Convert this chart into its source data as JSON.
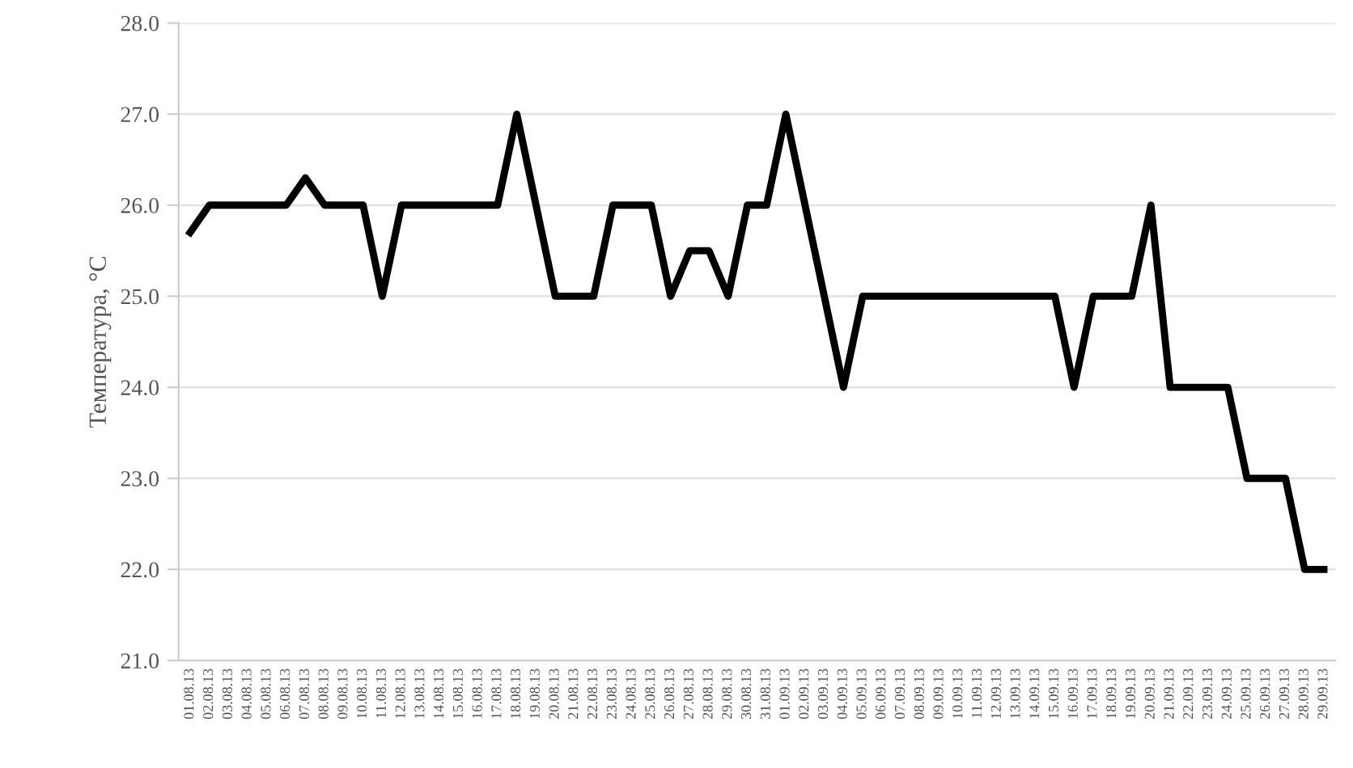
{
  "chart_data": {
    "type": "line",
    "ylabel": "Температура, °C",
    "categories": [
      "01.08.13",
      "02.08.13",
      "03.08.13",
      "04.08.13",
      "05.08.13",
      "06.08.13",
      "07.08.13",
      "08.08.13",
      "09.08.13",
      "10.08.13",
      "11.08.13",
      "12.08.13",
      "13.08.13",
      "14.08.13",
      "15.08.13",
      "16.08.13",
      "17.08.13",
      "18.08.13",
      "19.08.13",
      "20.08.13",
      "21.08.13",
      "22.08.13",
      "23.08.13",
      "24.08.13",
      "25.08.13",
      "26.08.13",
      "27.08.13",
      "28.08.13",
      "29.08.13",
      "30.08.13",
      "31.08.13",
      "01.09.13",
      "02.09.13",
      "03.09.13",
      "04.09.13",
      "05.09.13",
      "06.09.13",
      "07.09.13",
      "08.09.13",
      "09.09.13",
      "10.09.13",
      "11.09.13",
      "12.09.13",
      "13.09.13",
      "14.09.13",
      "15.09.13",
      "16.09.13",
      "17.09.13",
      "18.09.13",
      "19.09.13",
      "20.09.13",
      "21.09.13",
      "22.09.13",
      "23.09.13",
      "24.09.13",
      "25.09.13",
      "26.09.13",
      "27.09.13",
      "28.09.13",
      "29.09.13"
    ],
    "series": [
      {
        "color": "#000000",
        "values": [
          25.7,
          26,
          26,
          26,
          26,
          26,
          26.3,
          26,
          26,
          26,
          25,
          26,
          26,
          26,
          26,
          26,
          26,
          27,
          26,
          25,
          25,
          25,
          26,
          26,
          26,
          25,
          25.5,
          25.5,
          25,
          26,
          26,
          27,
          26,
          25,
          24,
          25,
          25,
          25,
          25,
          25,
          25,
          25,
          25,
          25,
          25,
          25,
          24,
          25,
          25,
          25,
          26,
          24,
          24,
          24,
          24,
          23,
          23,
          23,
          22,
          22
        ]
      }
    ],
    "ylim": [
      21,
      28
    ],
    "yticks": [
      {
        "value": 21,
        "label": "21.0"
      },
      {
        "value": 22,
        "label": "22.0"
      },
      {
        "value": 23,
        "label": "23.0"
      },
      {
        "value": 24,
        "label": "24.0"
      },
      {
        "value": 25,
        "label": "25.0"
      },
      {
        "value": 26,
        "label": "26.0"
      },
      {
        "value": 27,
        "label": "27.0"
      },
      {
        "value": 28,
        "label": "28.0"
      }
    ],
    "grid": "y",
    "marker": "none",
    "line_style": "solid",
    "legend": false
  }
}
